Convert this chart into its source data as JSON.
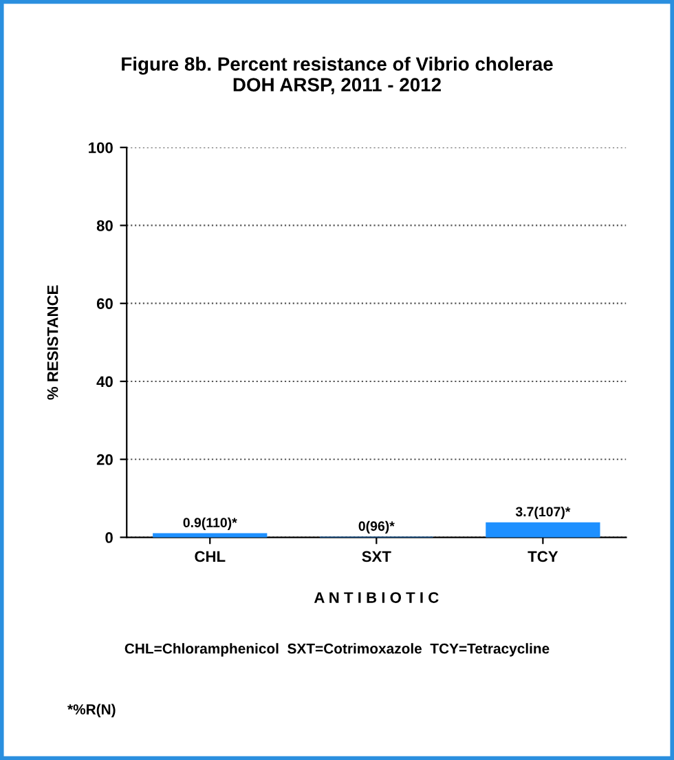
{
  "chart_data": {
    "type": "bar",
    "title": "Figure 8b. Percent resistance of Vibrio cholerae\nDOH ARSP, 2011 - 2012",
    "xlabel": "A N T I B I O T I C",
    "ylabel": "% RESISTANCE",
    "categories": [
      "CHL",
      "SXT",
      "TCY"
    ],
    "values": [
      0.9,
      0,
      3.7
    ],
    "value_labels": [
      "0.9(110)*",
      "0(96)*",
      "3.7(107)*"
    ],
    "color": "#1e90ff",
    "ylim": [
      0,
      100
    ],
    "yticks": [
      0,
      20,
      40,
      60,
      80,
      100
    ],
    "grid": "y",
    "legend": false,
    "annotations": [
      "CHL=Chloramphenicol  SXT=Cotrimoxazole  TCY=Tetracycline",
      "*%R(N)"
    ]
  }
}
